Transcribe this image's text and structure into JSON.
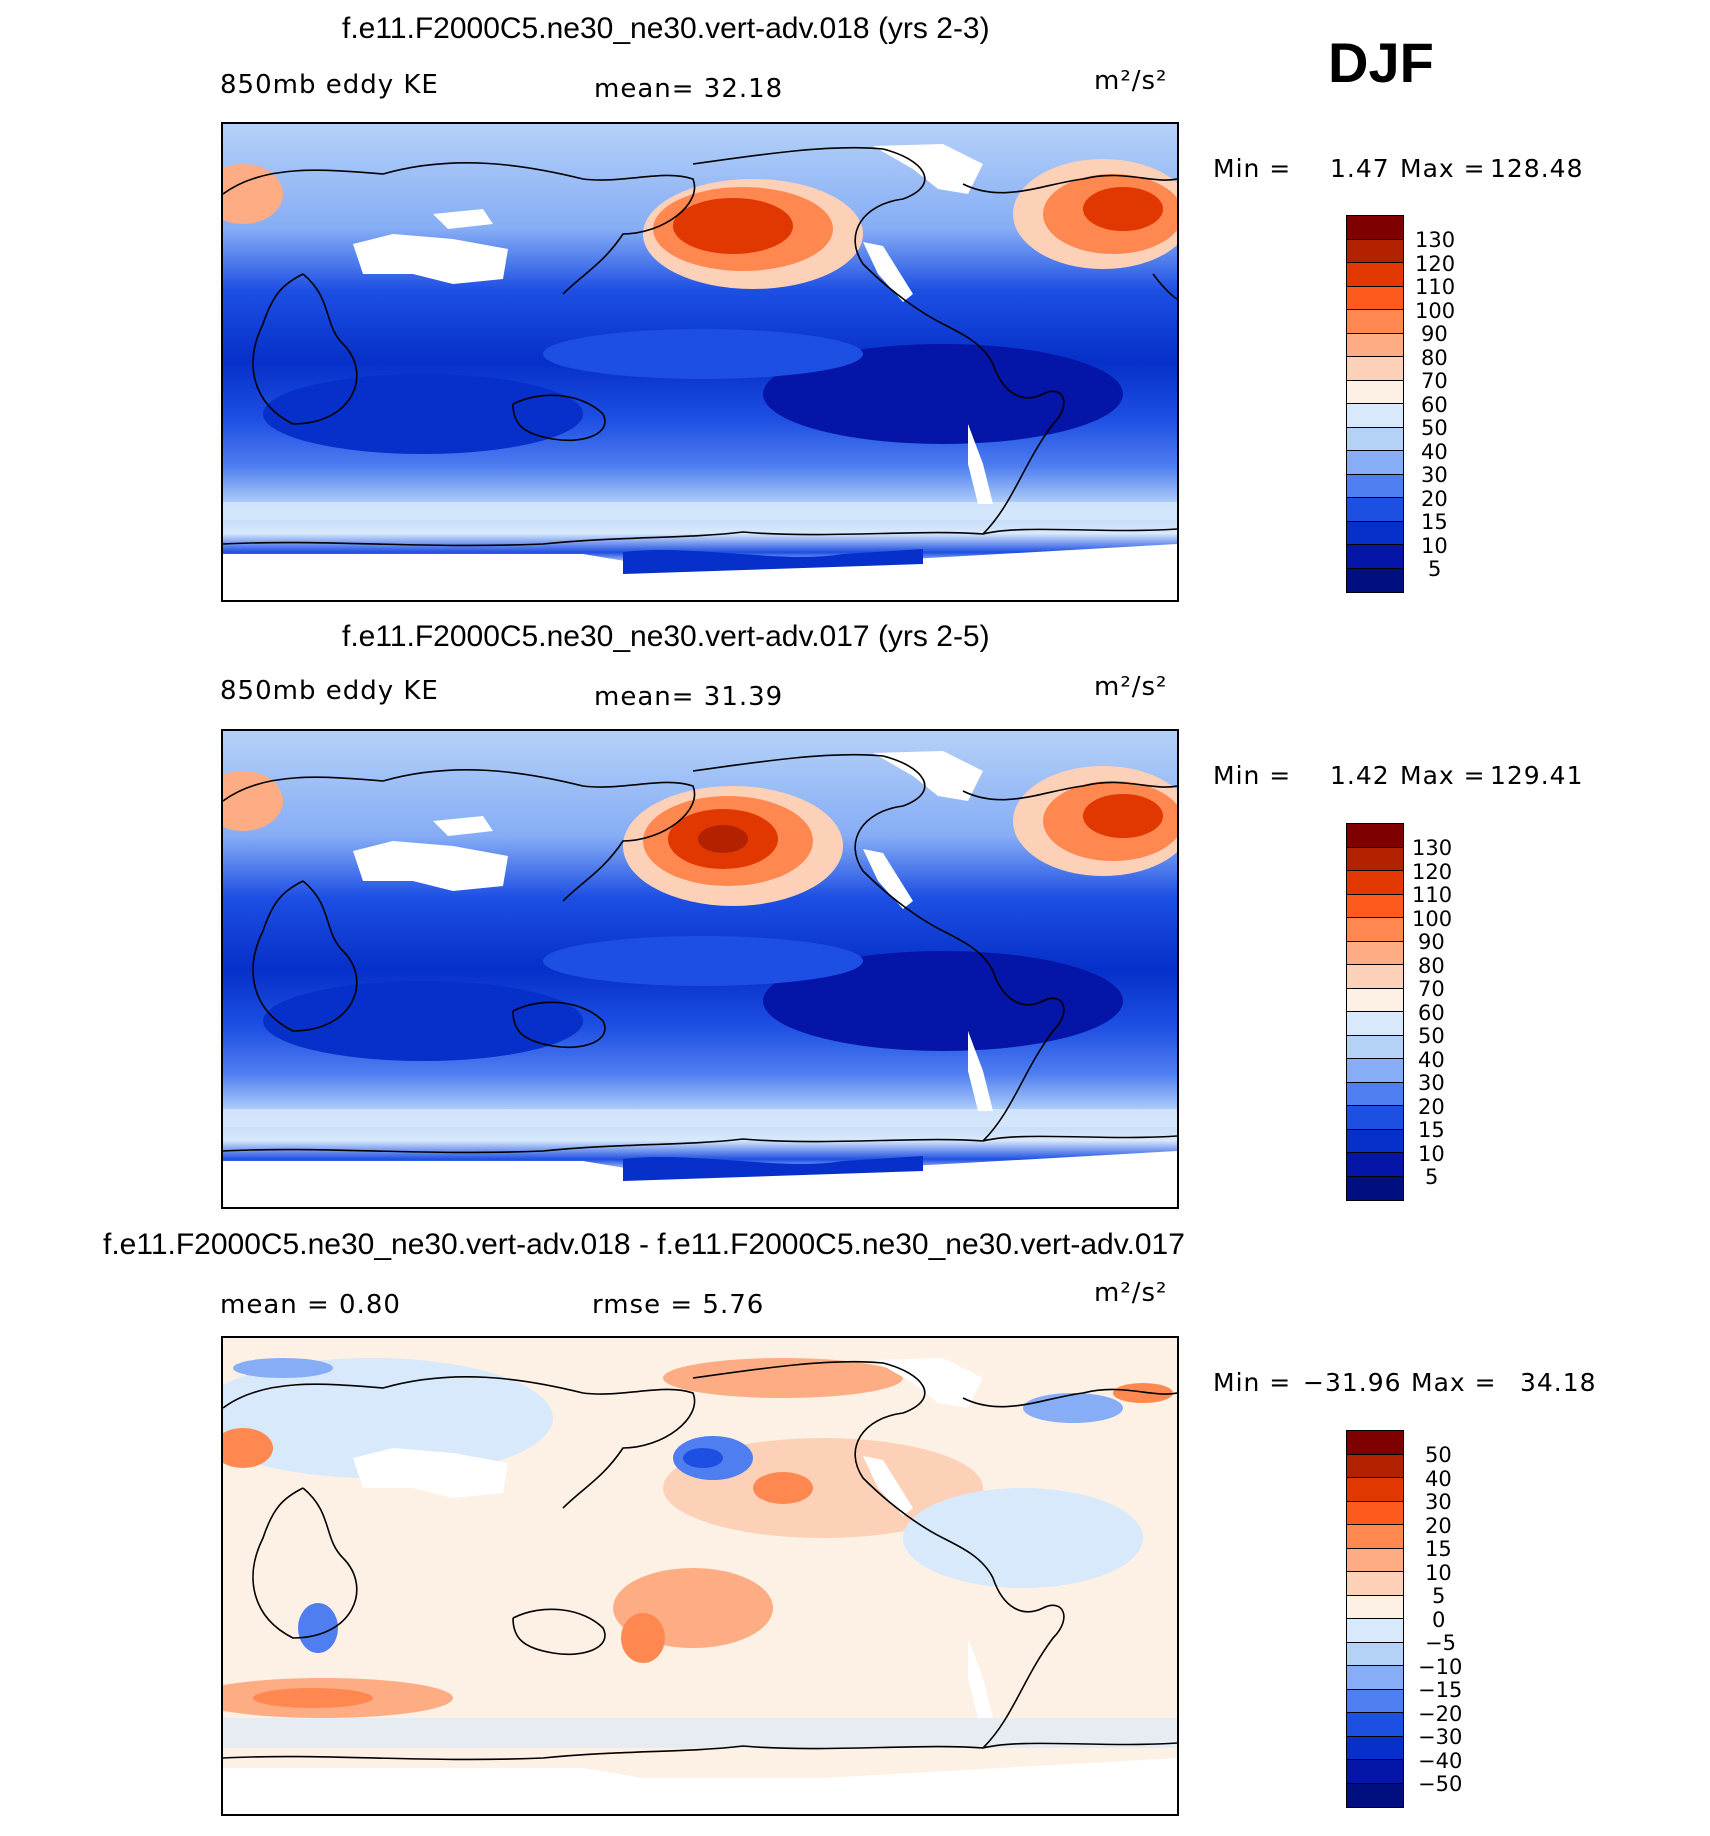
{
  "season": "DJF",
  "panels": [
    {
      "title": "f.e11.F2000C5.ne30_ne30.vert-adv.018 (yrs 2-3)",
      "left_label": "850mb  eddy  KE",
      "center_label": "mean=   32.18",
      "units": "m²/s²",
      "min_label": "Min  =",
      "min_value": "1.47",
      "max_label": "Max  =",
      "max_value": "128.48",
      "colorbar_labels": [
        "130",
        "120",
        "110",
        "100",
        "90",
        "80",
        "70",
        "60",
        "50",
        "40",
        "30",
        "20",
        "15",
        "10",
        "5"
      ]
    },
    {
      "title": "f.e11.F2000C5.ne30_ne30.vert-adv.017 (yrs 2-5)",
      "left_label": "850mb  eddy  KE",
      "center_label": "mean=   31.39",
      "units": "m²/s²",
      "min_label": "Min  =",
      "min_value": "1.42",
      "max_label": "Max  =",
      "max_value": "129.41",
      "colorbar_labels": [
        "130",
        "120",
        "110",
        "100",
        "90",
        "80",
        "70",
        "60",
        "50",
        "40",
        "30",
        "20",
        "15",
        "10",
        "5"
      ]
    },
    {
      "title": "f.e11.F2000C5.ne30_ne30.vert-adv.018 - f.e11.F2000C5.ne30_ne30.vert-adv.017",
      "left_label": "mean  =    0.80",
      "center_label": "rmse  =    5.76",
      "units": "m²/s²",
      "min_label": "Min  =",
      "min_value": "−31.96",
      "max_label": "Max  =",
      "max_value": "34.18",
      "colorbar_labels": [
        "50",
        "40",
        "30",
        "20",
        "15",
        "10",
        "5",
        "0",
        "−5",
        "−10",
        "−15",
        "−20",
        "−30",
        "−40",
        "−50"
      ]
    }
  ],
  "colors": {
    "seq_scale": [
      "#7f0000",
      "#b22200",
      "#e03800",
      "#ff5a1e",
      "#ff8850",
      "#fdac83",
      "#fdd1b8",
      "#fdf0e4",
      "#d8e9fb",
      "#b4d1f8",
      "#86adf5",
      "#4f7ef0",
      "#1d4fe3",
      "#0630c9",
      "#0515a8",
      "#000f80"
    ],
    "div_scale": [
      "#7f0000",
      "#b22200",
      "#e03800",
      "#ff5a1e",
      "#ff8850",
      "#fdac83",
      "#fdd1b8",
      "#fdf0e4",
      "#d8e9fb",
      "#b4d1f8",
      "#86adf5",
      "#4f7ef0",
      "#1d4fe3",
      "#0630c9",
      "#0515a8",
      "#000f80"
    ]
  }
}
